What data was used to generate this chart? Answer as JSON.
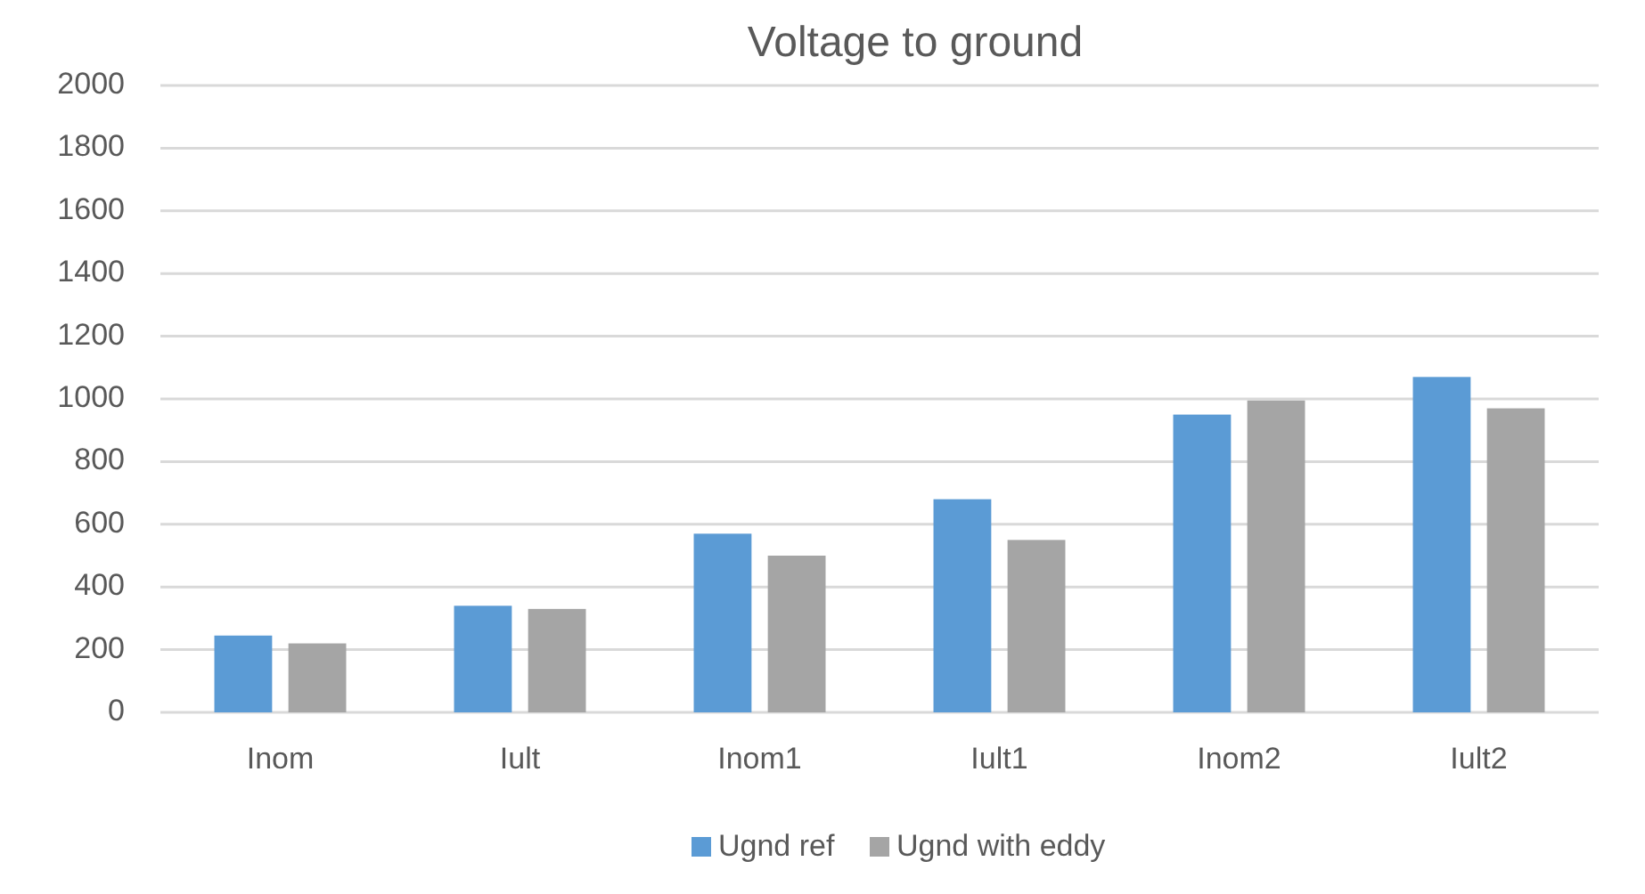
{
  "chart_data": {
    "type": "bar",
    "title": "Voltage to ground",
    "categories": [
      "Inom",
      "Iult",
      "Inom1",
      "Iult1",
      "Inom2",
      "Iult2"
    ],
    "series": [
      {
        "name": "Ugnd ref",
        "color": "#5b9bd5",
        "values": [
          245,
          340,
          570,
          680,
          950,
          1070
        ]
      },
      {
        "name": "Ugnd with eddy",
        "color": "#a5a5a5",
        "values": [
          220,
          330,
          500,
          550,
          995,
          970
        ]
      }
    ],
    "ylim": [
      0,
      2000
    ],
    "yticks": [
      0,
      200,
      400,
      600,
      800,
      1000,
      1200,
      1400,
      1600,
      1800,
      2000
    ],
    "grid": "y",
    "legend": "bottom"
  }
}
